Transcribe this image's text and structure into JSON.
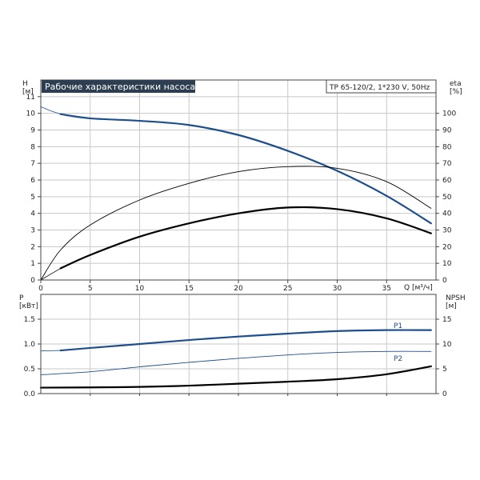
{
  "title": "Рабочие характеристики насоса",
  "subtitle": "TP 65-120/2, 1*230 V, 50Hz",
  "colors": {
    "title_bg": "#2c3e50",
    "blue": "#1f4e8c",
    "black": "#000000",
    "grid": "#c8c8c8"
  },
  "chart_data": [
    {
      "type": "line",
      "name": "top-panel",
      "xlabel": "Q [м³/ч]",
      "ylabel_left": "H\n[м]",
      "ylabel_right": "eta\n[%]",
      "xlim": [
        0,
        40
      ],
      "ylim_left": [
        0,
        12
      ],
      "ylim_right": [
        0,
        120
      ],
      "x_ticks": [
        0,
        5,
        10,
        15,
        20,
        25,
        30,
        35
      ],
      "y_ticks_left": [
        0,
        1,
        2,
        3,
        4,
        5,
        6,
        7,
        8,
        9,
        10,
        11
      ],
      "y_ticks_right": [
        0,
        10,
        20,
        30,
        40,
        50,
        60,
        70,
        80,
        90,
        100
      ],
      "grid": true,
      "series": [
        {
          "axis": "left",
          "color": "#1f4e8c",
          "width": 2.2,
          "x": [
            2,
            5,
            10,
            15,
            20,
            25,
            30,
            35,
            39.5
          ],
          "y": [
            9.95,
            9.7,
            9.55,
            9.3,
            8.7,
            7.75,
            6.55,
            5.05,
            3.4
          ]
        },
        {
          "axis": "left",
          "color": "#1f4e8c",
          "width": 0.8,
          "x": [
            0,
            1,
            2
          ],
          "y": [
            10.4,
            10.15,
            9.95
          ]
        },
        {
          "axis": "right",
          "color": "#000000",
          "width": 0.9,
          "x": [
            0,
            2,
            5,
            10,
            15,
            20,
            25,
            30,
            35,
            39.5
          ],
          "y": [
            0,
            18,
            33,
            48,
            58,
            65,
            68,
            67,
            59,
            43
          ]
        },
        {
          "axis": "right",
          "color": "#000000",
          "width": 2.2,
          "x": [
            2,
            5,
            10,
            15,
            20,
            25,
            30,
            35,
            39.5
          ],
          "y": [
            7,
            15,
            26,
            34,
            40,
            43.5,
            42.5,
            37,
            28
          ]
        },
        {
          "axis": "right",
          "color": "#000000",
          "width": 0.8,
          "x": [
            0,
            2
          ],
          "y": [
            0,
            7
          ]
        }
      ]
    },
    {
      "type": "line",
      "name": "bottom-panel",
      "ylabel_left": "P\n[кВт]",
      "ylabel_right": "NPSH\n[м]",
      "xlim": [
        0,
        40
      ],
      "ylim_left": [
        0,
        2
      ],
      "ylim_right": [
        0,
        20
      ],
      "y_ticks_left": [
        0.0,
        0.5,
        1.0,
        1.5
      ],
      "y_tick_labels_left": [
        "0.0",
        "0.5",
        "1.0",
        "1.5"
      ],
      "y_ticks_right": [
        0,
        5,
        10,
        15
      ],
      "grid": true,
      "series": [
        {
          "name": "P1",
          "axis": "left",
          "color": "#1f4e8c",
          "width": 2.2,
          "x": [
            2,
            5,
            10,
            15,
            20,
            25,
            30,
            35,
            39.5
          ],
          "y": [
            0.87,
            0.92,
            1.0,
            1.08,
            1.15,
            1.21,
            1.26,
            1.28,
            1.28
          ]
        },
        {
          "axis": "left",
          "color": "#1f4e8c",
          "width": 0.8,
          "x": [
            0,
            2
          ],
          "y": [
            0.86,
            0.87
          ]
        },
        {
          "name": "P2",
          "axis": "left",
          "color": "#1f4e8c",
          "width": 0.9,
          "x": [
            0,
            5,
            10,
            15,
            20,
            25,
            30,
            35,
            39.5
          ],
          "y": [
            0.38,
            0.44,
            0.54,
            0.63,
            0.71,
            0.78,
            0.83,
            0.85,
            0.85
          ]
        },
        {
          "axis": "right",
          "color": "#000000",
          "width": 2.2,
          "x": [
            0,
            5,
            10,
            15,
            20,
            25,
            30,
            35,
            39.5
          ],
          "y": [
            1.2,
            1.25,
            1.35,
            1.6,
            2.0,
            2.4,
            2.9,
            3.9,
            5.5
          ]
        }
      ]
    }
  ]
}
